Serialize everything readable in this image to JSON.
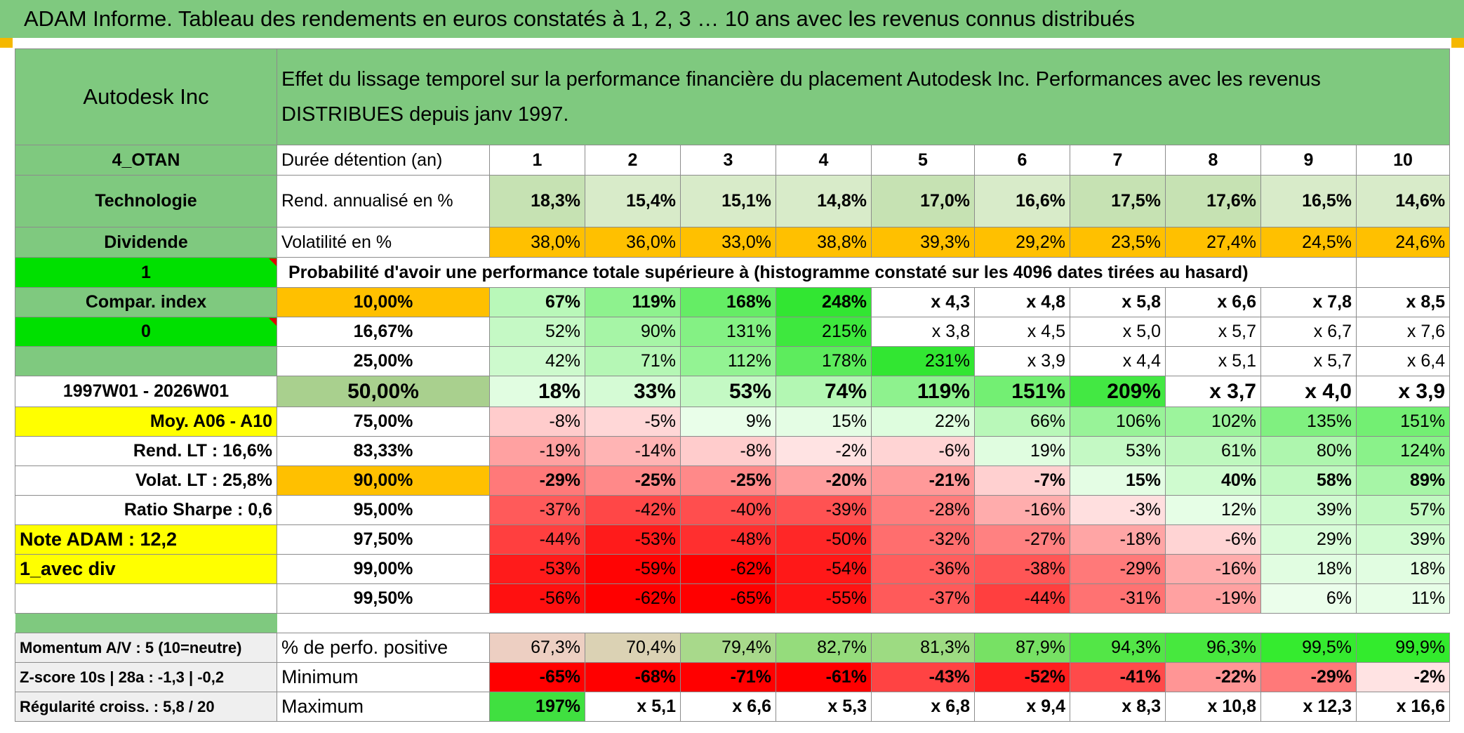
{
  "title": "ADAM Informe. Tableau des rendements en euros constatés à 1, 2, 3 … 10 ans avec les revenus connus distribués",
  "header": {
    "name": "Autodesk Inc",
    "description": "Effet du lissage temporel sur la performance financière du placement Autodesk Inc. Performances avec les revenus DISTRIBUES depuis janv 1997."
  },
  "left": {
    "code": "4_OTAN",
    "sector": "Technologie",
    "dividend_label": "Dividende",
    "dividend_value": "1",
    "compar_label": "Compar. index",
    "compar_value": "0",
    "period": "1997W01 - 2026W01",
    "moy": "Moy. A06 - A10",
    "rend_lt": "Rend. LT :    16,6%",
    "volat_lt": "Volat. LT :    25,8%",
    "sharpe": "Ratio Sharpe :    0,6",
    "note": "Note ADAM : 12,2",
    "avec_div": "1_avec div",
    "momentum": "Momentum A/V : 5 (10=neutre)",
    "zscore": "Z-score 10s | 28a : -1,3 | -0,2",
    "regularite": "Régularité croiss. : 5,8 / 20"
  },
  "labels": {
    "duree": "Durée détention (an)",
    "rend": "Rend. annualisé en %",
    "vol": "Volatilité en %",
    "proba": "Probabilité d'avoir une performance totale supérieure à (histogramme constaté sur les 4096 dates tirées au hasard)",
    "positive": "% de perfo. positive",
    "minimum": "Minimum",
    "maximum": "Maximum"
  },
  "years": [
    "1",
    "2",
    "3",
    "4",
    "5",
    "6",
    "7",
    "8",
    "9",
    "10"
  ],
  "rend": [
    "18,3%",
    "15,4%",
    "15,1%",
    "14,8%",
    "17,0%",
    "16,6%",
    "17,5%",
    "17,6%",
    "16,5%",
    "14,6%"
  ],
  "vol": [
    "38,0%",
    "36,0%",
    "33,0%",
    "38,8%",
    "39,3%",
    "29,2%",
    "23,5%",
    "27,4%",
    "24,5%",
    "24,6%"
  ],
  "quantiles": [
    {
      "p": "10,00%",
      "vals": [
        "67%",
        "119%",
        "168%",
        "248%",
        "x 4,3",
        "x 4,8",
        "x 5,8",
        "x 6,6",
        "x 7,8",
        "x 8,5"
      ]
    },
    {
      "p": "16,67%",
      "vals": [
        "52%",
        "90%",
        "131%",
        "215%",
        "x 3,8",
        "x 4,5",
        "x 5,0",
        "x 5,7",
        "x 6,7",
        "x 7,6"
      ]
    },
    {
      "p": "25,00%",
      "vals": [
        "42%",
        "71%",
        "112%",
        "178%",
        "231%",
        "x 3,9",
        "x 4,4",
        "x 5,1",
        "x 5,7",
        "x 6,4"
      ]
    },
    {
      "p": "50,00%",
      "vals": [
        "18%",
        "33%",
        "53%",
        "74%",
        "119%",
        "151%",
        "209%",
        "x 3,7",
        "x 4,0",
        "x 3,9"
      ]
    },
    {
      "p": "75,00%",
      "vals": [
        "-8%",
        "-5%",
        "9%",
        "15%",
        "22%",
        "66%",
        "106%",
        "102%",
        "135%",
        "151%"
      ]
    },
    {
      "p": "83,33%",
      "vals": [
        "-19%",
        "-14%",
        "-8%",
        "-2%",
        "-6%",
        "19%",
        "53%",
        "61%",
        "80%",
        "124%"
      ]
    },
    {
      "p": "90,00%",
      "vals": [
        "-29%",
        "-25%",
        "-25%",
        "-20%",
        "-21%",
        "-7%",
        "15%",
        "40%",
        "58%",
        "89%"
      ]
    },
    {
      "p": "95,00%",
      "vals": [
        "-37%",
        "-42%",
        "-40%",
        "-39%",
        "-28%",
        "-16%",
        "-3%",
        "12%",
        "39%",
        "57%"
      ]
    },
    {
      "p": "97,50%",
      "vals": [
        "-44%",
        "-53%",
        "-48%",
        "-50%",
        "-32%",
        "-27%",
        "-18%",
        "-6%",
        "29%",
        "39%"
      ]
    },
    {
      "p": "99,00%",
      "vals": [
        "-53%",
        "-59%",
        "-62%",
        "-54%",
        "-36%",
        "-38%",
        "-29%",
        "-16%",
        "18%",
        "18%"
      ]
    },
    {
      "p": "99,50%",
      "vals": [
        "-56%",
        "-62%",
        "-65%",
        "-55%",
        "-37%",
        "-44%",
        "-31%",
        "-19%",
        "6%",
        "11%"
      ]
    }
  ],
  "positive": [
    "67,3%",
    "70,4%",
    "79,4%",
    "82,7%",
    "81,3%",
    "87,9%",
    "94,3%",
    "96,3%",
    "99,5%",
    "99,9%"
  ],
  "minimum": [
    "-65%",
    "-68%",
    "-71%",
    "-61%",
    "-43%",
    "-52%",
    "-41%",
    "-22%",
    "-29%",
    "-2%"
  ],
  "maximum": [
    "197%",
    "x 5,1",
    "x 6,6",
    "x 5,3",
    "x 6,8",
    "x 9,4",
    "x 8,3",
    "x 10,8",
    "x 12,3",
    "x 16,6"
  ],
  "colors": {
    "header_green": "#7fc97f",
    "bright_green": "#00e000",
    "orange": "#ffc000",
    "yellow": "#ffff00",
    "red_text": "#e00000"
  }
}
